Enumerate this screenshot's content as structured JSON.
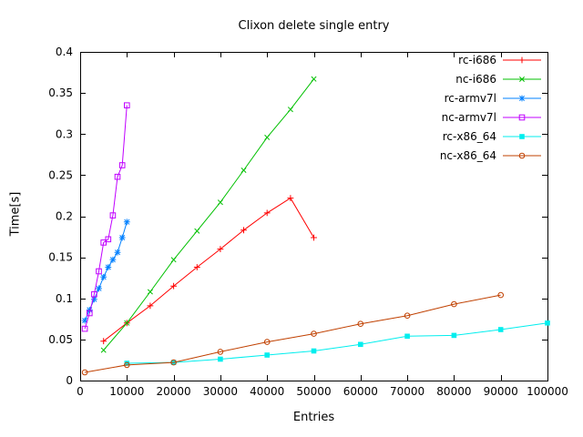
{
  "chart_data": {
    "type": "line",
    "title": "Clixon delete single entry",
    "xlabel": "Entries",
    "ylabel": "Time[s]",
    "xlim": [
      0,
      100000
    ],
    "ylim": [
      0,
      0.4
    ],
    "grid": false,
    "legend_position": "top-right-inside",
    "background_color": "#ffffff",
    "border_color": "#000000",
    "text_color": "#000000",
    "x_ticks": [
      0,
      10000,
      20000,
      30000,
      40000,
      50000,
      60000,
      70000,
      80000,
      90000,
      100000
    ],
    "x_tick_labels": [
      "0",
      "10000",
      "20000",
      "30000",
      "40000",
      "50000",
      "60000",
      "70000",
      "80000",
      "90000",
      "100000"
    ],
    "y_ticks": [
      0,
      0.05,
      0.1,
      0.15,
      0.2,
      0.25,
      0.3,
      0.35,
      0.4
    ],
    "y_tick_labels": [
      "0",
      "0.05",
      "0.1",
      "0.15",
      "0.2",
      "0.25",
      "0.3",
      "0.35",
      "0.4"
    ],
    "series": [
      {
        "name": "rc-i686",
        "color": "#ff0000",
        "marker": "plus",
        "x": [
          5000,
          10000,
          15000,
          20000,
          25000,
          30000,
          35000,
          40000,
          45000,
          50000
        ],
        "y": [
          0.048,
          0.07,
          0.091,
          0.115,
          0.138,
          0.16,
          0.183,
          0.204,
          0.222,
          0.174
        ]
      },
      {
        "name": "nc-i686",
        "color": "#00c000",
        "marker": "cross",
        "x": [
          5000,
          10000,
          15000,
          20000,
          25000,
          30000,
          35000,
          40000,
          45000,
          50000
        ],
        "y": [
          0.037,
          0.07,
          0.108,
          0.147,
          0.182,
          0.217,
          0.256,
          0.296,
          0.33,
          0.367
        ]
      },
      {
        "name": "rc-armv7l",
        "color": "#0080ff",
        "marker": "asterisk",
        "x": [
          1000,
          2000,
          3000,
          4000,
          5000,
          6000,
          7000,
          8000,
          9000,
          10000
        ],
        "y": [
          0.073,
          0.086,
          0.099,
          0.112,
          0.126,
          0.138,
          0.147,
          0.156,
          0.174,
          0.193
        ]
      },
      {
        "name": "nc-armv7l",
        "color": "#c000ff",
        "marker": "square-open",
        "x": [
          1000,
          2000,
          3000,
          4000,
          5000,
          6000,
          7000,
          8000,
          9000,
          10000
        ],
        "y": [
          0.063,
          0.082,
          0.105,
          0.133,
          0.168,
          0.172,
          0.201,
          0.248,
          0.262,
          0.335
        ]
      },
      {
        "name": "rc-x86_64",
        "color": "#00eeee",
        "marker": "square-filled",
        "x": [
          10000,
          20000,
          30000,
          40000,
          50000,
          60000,
          70000,
          80000,
          90000,
          100000
        ],
        "y": [
          0.021,
          0.022,
          0.026,
          0.031,
          0.036,
          0.044,
          0.054,
          0.055,
          0.062,
          0.07
        ]
      },
      {
        "name": "nc-x86_64",
        "color": "#c04000",
        "marker": "circle-open",
        "x": [
          1000,
          10000,
          20000,
          30000,
          40000,
          50000,
          60000,
          70000,
          80000,
          90000
        ],
        "y": [
          0.01,
          0.019,
          0.022,
          0.035,
          0.047,
          0.057,
          0.069,
          0.079,
          0.093,
          0.104
        ]
      }
    ]
  }
}
